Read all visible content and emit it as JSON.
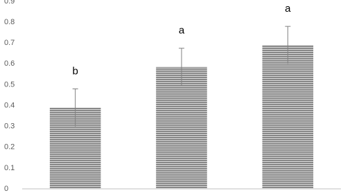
{
  "chart_data": {
    "type": "bar",
    "categories": [
      null,
      null,
      null
    ],
    "values": [
      0.39,
      0.585,
      0.69
    ],
    "errors": [
      0.09,
      0.09,
      0.09
    ],
    "annotations": [
      "b",
      "a",
      "a"
    ],
    "color": "#7f7f7f",
    "ylim": [
      0,
      0.9
    ],
    "yticks": [
      0,
      0.1,
      0.2,
      0.3,
      0.4,
      0.5,
      0.6,
      0.7,
      0.8,
      0.9
    ],
    "grid": false
  }
}
